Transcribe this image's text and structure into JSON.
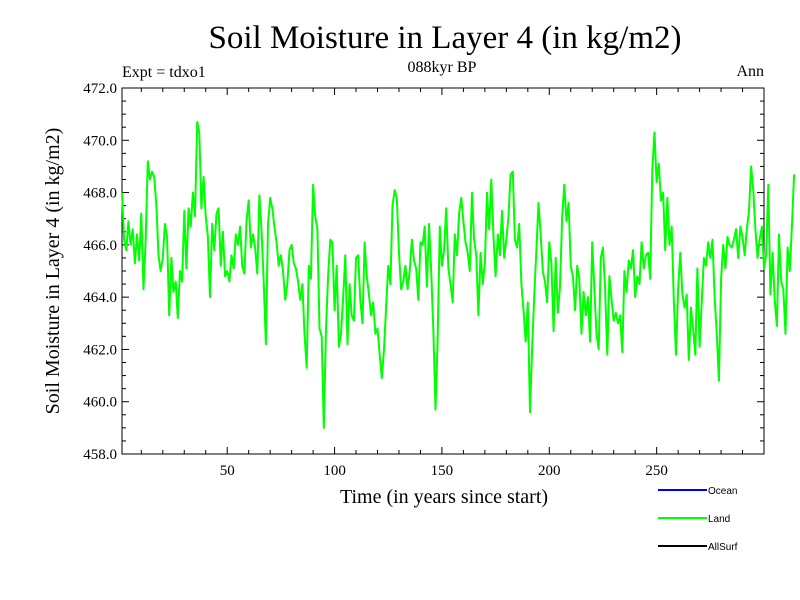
{
  "chart_data": {
    "type": "line",
    "title": "Soil Moisture in Layer 4 (in kg/m2)",
    "subtitle": "088kyr BP",
    "left_note": "Expt = tdxo1",
    "right_note": "Ann",
    "xlabel": "Time (in years since start)",
    "ylabel": "Soil Moisture in Layer 4 (in kg/m2)",
    "xlim": [
      1,
      300
    ],
    "ylim": [
      458,
      472
    ],
    "x_ticks": [
      50,
      100,
      150,
      200,
      250
    ],
    "y_ticks": [
      "458.0",
      "460.0",
      "462.0",
      "464.0",
      "466.0",
      "468.0",
      "470.0",
      "472.0"
    ],
    "grid": false,
    "legend_position": "bottom-right",
    "legend": [
      {
        "name": "Ocean",
        "color": "#0000ff"
      },
      {
        "name": "Land",
        "color": "#00ff00"
      },
      {
        "name": "AllSurf",
        "color": "#000000"
      }
    ],
    "series": [
      {
        "name": "Land",
        "color": "#00ff00",
        "x_start": 1,
        "x_step": 1,
        "values": [
          468.0,
          466.2,
          465.8,
          466.9,
          466.0,
          466.6,
          465.3,
          466.4,
          465.4,
          467.2,
          464.3,
          466.1,
          469.2,
          468.5,
          468.8,
          468.6,
          467.5,
          465.6,
          465.0,
          465.5,
          466.8,
          466.3,
          463.3,
          465.5,
          464.2,
          464.6,
          463.2,
          465.0,
          464.6,
          467.3,
          465.1,
          467.4,
          466.7,
          468.0,
          467.1,
          470.7,
          470.3,
          467.4,
          468.6,
          467.1,
          466.3,
          464.0,
          466.8,
          465.8,
          467.2,
          467.4,
          465.2,
          466.5,
          464.8,
          465.0,
          464.6,
          465.6,
          465.1,
          466.4,
          466.0,
          466.7,
          465.2,
          464.9,
          466.9,
          467.7,
          465.9,
          466.4,
          465.9,
          464.9,
          467.9,
          466.5,
          464.6,
          462.2,
          466.8,
          467.8,
          467.4,
          466.7,
          466.1,
          465.2,
          465.6,
          465.0,
          463.9,
          464.5,
          465.8,
          466.0,
          465.3,
          465.1,
          464.6,
          463.9,
          464.5,
          462.6,
          461.3,
          465.2,
          464.7,
          468.3,
          467.1,
          466.6,
          462.8,
          462.5,
          459.0,
          462.8,
          464.8,
          466.2,
          466.1,
          463.5,
          465.2,
          462.1,
          462.6,
          464.0,
          465.6,
          462.2,
          464.5,
          463.3,
          463.1,
          465.5,
          465.6,
          463.9,
          463.0,
          466.1,
          464.8,
          464.1,
          463.3,
          463.8,
          462.6,
          462.8,
          461.8,
          460.9,
          462.0,
          463.6,
          465.2,
          464.5,
          467.5,
          468.1,
          467.8,
          465.7,
          464.3,
          464.6,
          465.2,
          464.3,
          465.0,
          466.2,
          465.4,
          465.1,
          463.9,
          466.1,
          466.0,
          466.7,
          464.4,
          466.8,
          465.0,
          462.8,
          459.7,
          462.3,
          466.7,
          465.2,
          465.8,
          467.4,
          465.1,
          464.5,
          463.8,
          466.4,
          465.6,
          467.2,
          467.8,
          466.9,
          466.1,
          465.7,
          465.0,
          468.0,
          466.2,
          465.6,
          463.3,
          465.7,
          464.5,
          465.3,
          468.0,
          466.6,
          468.5,
          466.3,
          464.8,
          466.4,
          465.6,
          467.3,
          465.5,
          466.2,
          467.1,
          468.7,
          468.8,
          466.2,
          465.9,
          466.8,
          464.5,
          463.5,
          462.3,
          463.8,
          459.6,
          462.0,
          464.1,
          465.8,
          467.6,
          466.4,
          465.0,
          464.6,
          463.8,
          466.1,
          465.3,
          462.7,
          465.5,
          463.4,
          464.4,
          467.1,
          468.3,
          466.9,
          467.6,
          465.2,
          464.8,
          463.5,
          465.2,
          464.7,
          462.6,
          464.2,
          463.3,
          464.0,
          462.3,
          466.1,
          464.3,
          462.6,
          462.0,
          465.5,
          465.9,
          464.3,
          461.8,
          464.8,
          463.9,
          463.1,
          463.4,
          463.0,
          463.3,
          461.9,
          465.0,
          464.2,
          465.4,
          465.1,
          465.8,
          464.0,
          464.8,
          464.5,
          466.1,
          465.1,
          465.6,
          465.7,
          464.7,
          468.9,
          470.3,
          468.4,
          469.1,
          467.7,
          468.0,
          465.8,
          467.8,
          466.0,
          466.7,
          463.9,
          461.8,
          464.3,
          465.7,
          464.1,
          463.6,
          464.1,
          461.6,
          463.6,
          462.8,
          461.8,
          465.1,
          462.1,
          463.8,
          465.5,
          465.2,
          466.1,
          465.5,
          466.2,
          464.0,
          462.6,
          460.8,
          464.7,
          466.0,
          465.1,
          466.3,
          466.0,
          465.9,
          466.2,
          466.6,
          465.5,
          466.7,
          466.3,
          465.6,
          466.6,
          467.3,
          469.0,
          468.1,
          466.6,
          465.5,
          466.2,
          466.7,
          465.1,
          465.6,
          468.3,
          464.1,
          465.7,
          463.9,
          462.9,
          466.4,
          464.6,
          464.3,
          462.6,
          465.9,
          465.0,
          466.7,
          468.7
        ]
      }
    ]
  }
}
